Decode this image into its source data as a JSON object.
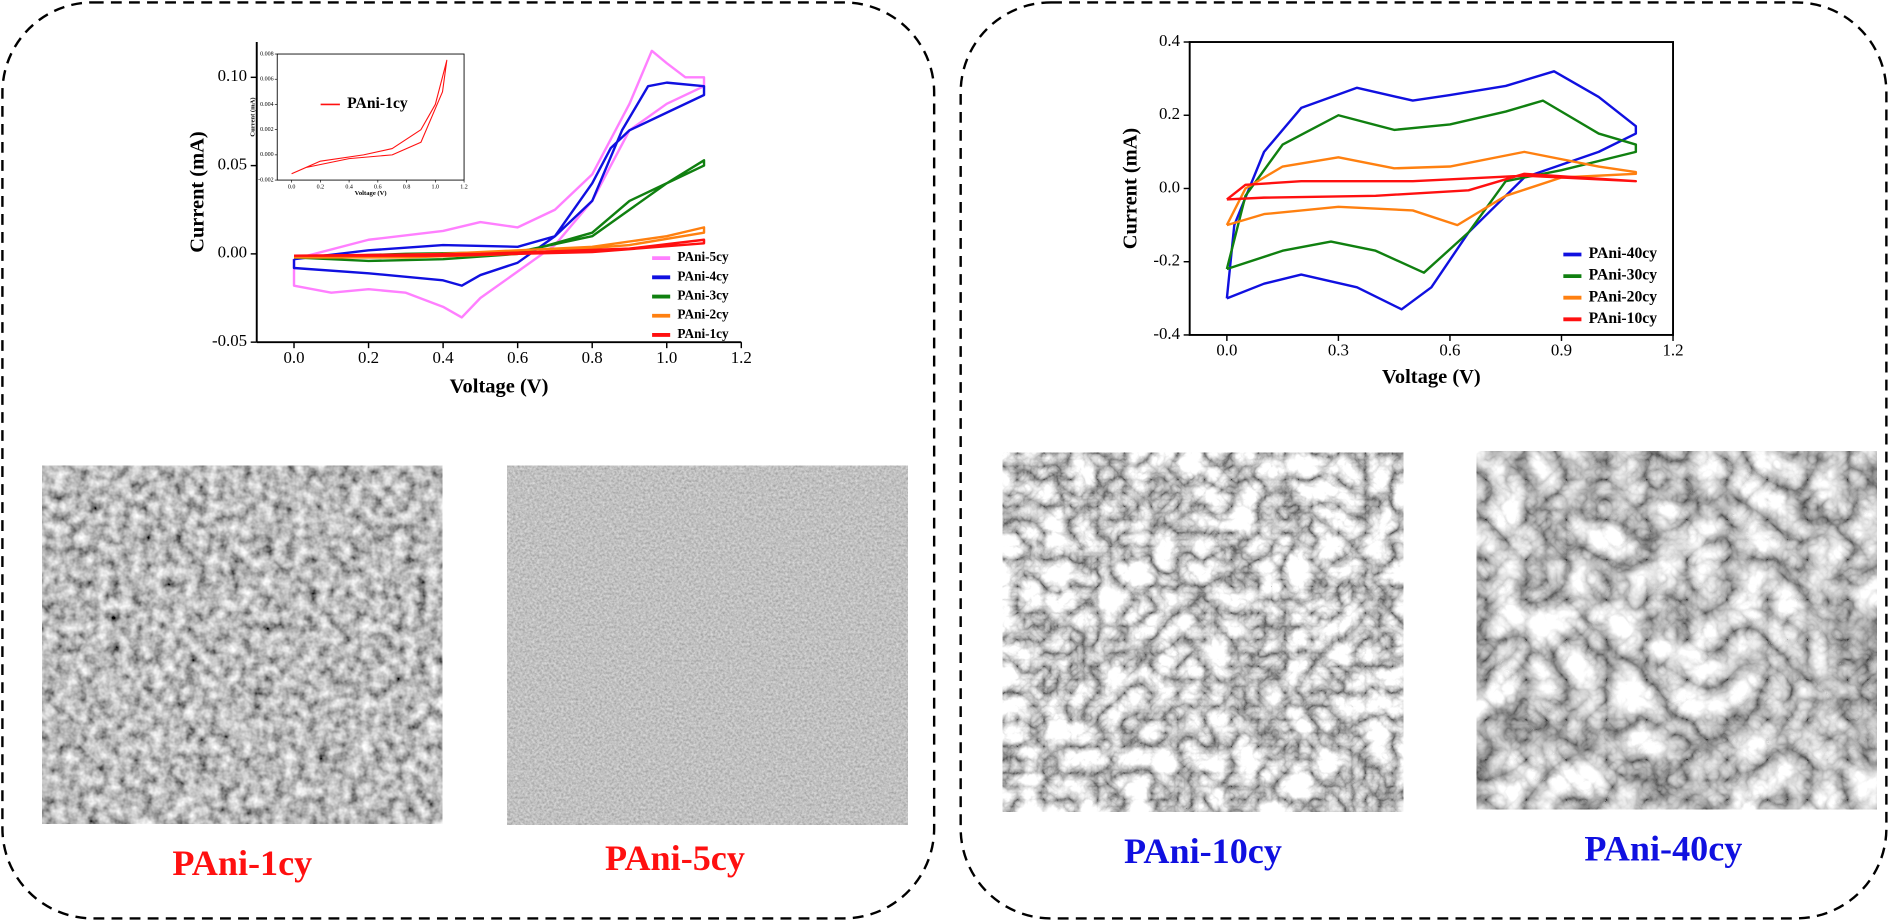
{
  "chart_data": [
    {
      "type": "line",
      "xlabel": "Voltage (V)",
      "ylabel": "Current (mA)",
      "box": false,
      "legend": "lower right",
      "xlim": [
        -0.1,
        1.2
      ],
      "xticks": [
        {
          "value": 0,
          "label": "0.0"
        },
        0.2,
        0.4,
        0.6,
        0.8,
        {
          "value": 1,
          "label": "1.0"
        },
        1.2
      ],
      "ylim": [
        -0.05,
        0.12
      ],
      "yticks": [
        {
          "value": -0.05,
          "label": "-0.05"
        },
        {
          "value": 0,
          "label": "0.00"
        },
        0.05,
        {
          "value": 0.1,
          "label": "0.10"
        }
      ],
      "series": [
        {
          "name": "PAni-5cy",
          "color": "#ff7fff",
          "x": [
            0,
            0.2,
            0.4,
            0.5,
            0.6,
            0.7,
            0.8,
            0.9,
            0.96,
            1.0,
            1.05,
            1.1,
            1.1,
            1.0,
            0.9,
            0.85,
            0.8,
            0.7,
            0.6,
            0.5,
            0.45,
            0.4,
            0.3,
            0.2,
            0.1,
            0,
            0
          ],
          "values": [
            -0.003,
            0.008,
            0.013,
            0.018,
            0.015,
            0.025,
            0.045,
            0.085,
            0.115,
            0.108,
            0.1,
            0.1,
            0.095,
            0.085,
            0.07,
            0.05,
            0.03,
            0.005,
            -0.01,
            -0.025,
            -0.036,
            -0.03,
            -0.022,
            -0.02,
            -0.022,
            -0.018,
            -0.003
          ]
        },
        {
          "name": "PAni-4cy",
          "color": "#1010e0",
          "x": [
            0,
            0.2,
            0.4,
            0.6,
            0.7,
            0.8,
            0.88,
            0.95,
            1.0,
            1.1,
            1.1,
            1.0,
            0.9,
            0.85,
            0.8,
            0.7,
            0.6,
            0.5,
            0.45,
            0.4,
            0.2,
            0,
            0
          ],
          "values": [
            -0.003,
            0.002,
            0.005,
            0.004,
            0.01,
            0.03,
            0.07,
            0.095,
            0.097,
            0.095,
            0.09,
            0.08,
            0.07,
            0.06,
            0.04,
            0.01,
            -0.005,
            -0.012,
            -0.018,
            -0.015,
            -0.011,
            -0.008,
            -0.003
          ]
        },
        {
          "name": "PAni-3cy",
          "color": "#108010",
          "x": [
            0,
            0.3,
            0.6,
            0.8,
            0.9,
            1.0,
            1.1,
            1.1,
            1.0,
            0.9,
            0.8,
            0.6,
            0.4,
            0.2,
            0
          ],
          "values": [
            -0.002,
            0.0,
            0.001,
            0.01,
            0.025,
            0.04,
            0.053,
            0.05,
            0.04,
            0.03,
            0.012,
            0.0,
            -0.003,
            -0.004,
            -0.002
          ]
        },
        {
          "name": "PAni-2cy",
          "color": "#ff8010",
          "x": [
            0,
            0.4,
            0.8,
            1.0,
            1.1,
            1.1,
            0.9,
            0.6,
            0.3,
            0
          ],
          "values": [
            -0.002,
            0.0,
            0.004,
            0.01,
            0.015,
            0.012,
            0.005,
            0.0,
            -0.002,
            -0.002
          ]
        },
        {
          "name": "PAni-1cy",
          "color": "#ff1010",
          "x": [
            0,
            0.5,
            0.9,
            1.1,
            1.1,
            0.8,
            0.4,
            0
          ],
          "values": [
            -0.001,
            0.0,
            0.003,
            0.008,
            0.006,
            0.001,
            -0.001,
            -0.001
          ]
        }
      ]
    },
    {
      "type": "line",
      "xlabel": "Voltage (V)",
      "ylabel": "Current (mA)",
      "box": true,
      "legend": "upper left",
      "xlim": [
        -0.1,
        1.2
      ],
      "xticks": [
        {
          "value": 0,
          "label": "0.0"
        },
        0.2,
        0.4,
        0.6,
        0.8,
        {
          "value": 1,
          "label": "1.0"
        },
        1.2
      ],
      "ylim": [
        -0.002,
        0.008
      ],
      "yticks": [
        -0.002,
        {
          "value": 0,
          "label": "0.000"
        },
        0.002,
        0.004,
        0.006,
        0.008
      ],
      "series": [
        {
          "name": "PAni-1cy",
          "color": "#ff1010",
          "x": [
            0,
            0.2,
            0.5,
            0.7,
            0.9,
            1.0,
            1.08,
            1.05,
            0.9,
            0.7,
            0.4,
            0.1,
            0
          ],
          "values": [
            -0.0015,
            -0.0005,
            0.0,
            0.0005,
            0.002,
            0.004,
            0.0075,
            0.005,
            0.001,
            0.0,
            -0.0003,
            -0.001,
            -0.0015
          ]
        }
      ]
    },
    {
      "type": "line",
      "xlabel": "Voltage (V)",
      "ylabel": "Current (mA)",
      "box": true,
      "legend": "lower right",
      "xlim": [
        -0.1,
        1.2
      ],
      "xticks": [
        {
          "value": 0,
          "label": "0.0"
        },
        0.3,
        0.6,
        0.9,
        1.2
      ],
      "ylim": [
        -0.4,
        0.4
      ],
      "yticks": [
        -0.4,
        -0.2,
        {
          "value": 0,
          "label": "0.0"
        },
        0.2,
        0.4
      ],
      "series": [
        {
          "name": "PAni-40cy",
          "color": "#1010e0",
          "x": [
            0,
            0.02,
            0.1,
            0.2,
            0.35,
            0.5,
            0.6,
            0.75,
            0.88,
            1.0,
            1.1,
            1.1,
            1.0,
            0.8,
            0.65,
            0.55,
            0.47,
            0.35,
            0.2,
            0.1,
            0
          ],
          "values": [
            -0.3,
            -0.1,
            0.1,
            0.22,
            0.275,
            0.24,
            0.255,
            0.28,
            0.32,
            0.25,
            0.17,
            0.15,
            0.1,
            0.03,
            -0.12,
            -0.27,
            -0.33,
            -0.27,
            -0.235,
            -0.26,
            -0.3
          ]
        },
        {
          "name": "PAni-30cy",
          "color": "#108010",
          "x": [
            0,
            0.05,
            0.15,
            0.3,
            0.45,
            0.6,
            0.75,
            0.85,
            1.0,
            1.1,
            1.1,
            0.9,
            0.75,
            0.65,
            0.53,
            0.4,
            0.28,
            0.15,
            0
          ],
          "values": [
            -0.22,
            -0.02,
            0.12,
            0.2,
            0.16,
            0.175,
            0.21,
            0.24,
            0.15,
            0.12,
            0.1,
            0.05,
            0.02,
            -0.12,
            -0.23,
            -0.17,
            -0.145,
            -0.17,
            -0.22
          ]
        },
        {
          "name": "PAni-20cy",
          "color": "#ff8010",
          "x": [
            0,
            0.05,
            0.15,
            0.3,
            0.45,
            0.6,
            0.8,
            1.0,
            1.1,
            1.1,
            0.9,
            0.75,
            0.62,
            0.5,
            0.3,
            0.1,
            0
          ],
          "values": [
            -0.1,
            0.0,
            0.06,
            0.085,
            0.055,
            0.06,
            0.1,
            0.06,
            0.045,
            0.04,
            0.03,
            -0.02,
            -0.1,
            -0.06,
            -0.05,
            -0.07,
            -0.1
          ]
        },
        {
          "name": "PAni-10cy",
          "color": "#ff1010",
          "x": [
            0,
            0.05,
            0.2,
            0.5,
            0.8,
            1.1,
            1.1,
            0.8,
            0.65,
            0.4,
            0.1,
            0
          ],
          "values": [
            -0.03,
            0.01,
            0.02,
            0.02,
            0.035,
            0.02,
            0.02,
            0.04,
            -0.005,
            -0.02,
            -0.025,
            -0.03
          ]
        }
      ]
    }
  ],
  "images": [
    {
      "label": "PAni-1cy",
      "color": "#ff1010"
    },
    {
      "label": "PAni-5cy",
      "color": "#ff1010"
    },
    {
      "label": "PAni-10cy",
      "color": "#1010e0"
    },
    {
      "label": "PAni-40cy",
      "color": "#1010e0"
    }
  ]
}
